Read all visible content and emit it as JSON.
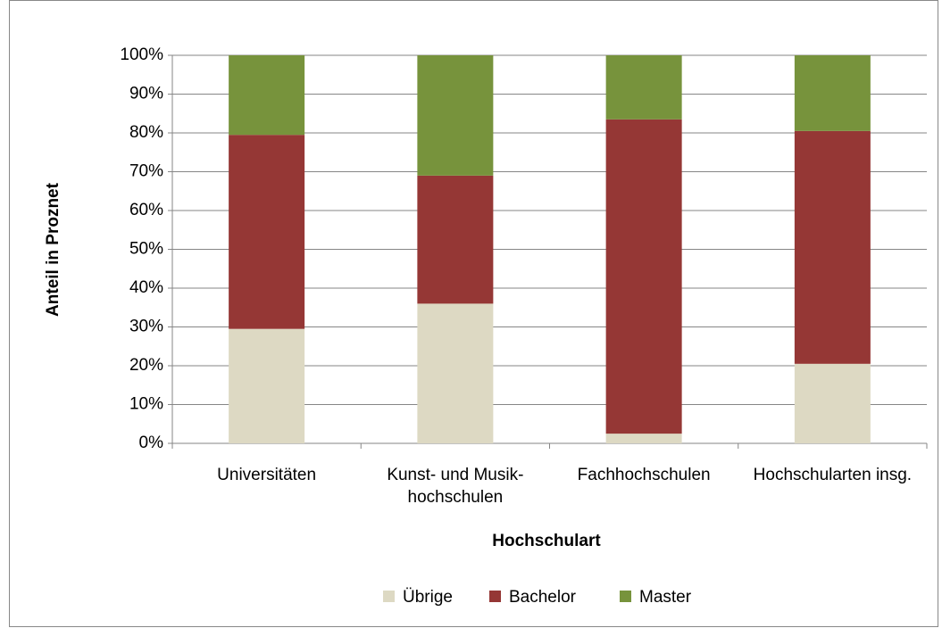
{
  "chart_data": {
    "type": "stacked_bar",
    "categories": [
      "Universitäten",
      "Kunst- und Musik-hochschulen",
      "Fachhochschulen",
      "Hochschularten insg."
    ],
    "series": [
      {
        "name": "Übrige",
        "color": "#ddd9c3",
        "values": [
          29.5,
          36,
          2.5,
          20.5
        ]
      },
      {
        "name": "Bachelor",
        "color": "#953735",
        "values": [
          50,
          33,
          81,
          60
        ]
      },
      {
        "name": "Master",
        "color": "#77933c",
        "values": [
          20.5,
          31,
          16.5,
          19.5
        ]
      }
    ],
    "xlabel": "Hochschulart",
    "ylabel": "Anteil in Proznet",
    "ylim": [
      0,
      100
    ],
    "yticks": [
      {
        "value": 0,
        "label": "0%"
      },
      {
        "value": 10,
        "label": "10%"
      },
      {
        "value": 20,
        "label": "20%"
      },
      {
        "value": 30,
        "label": "30%"
      },
      {
        "value": 40,
        "label": "40%"
      },
      {
        "value": 50,
        "label": "50%"
      },
      {
        "value": 60,
        "label": "60%"
      },
      {
        "value": 70,
        "label": "70%"
      },
      {
        "value": 80,
        "label": "80%"
      },
      {
        "value": 90,
        "label": "90%"
      },
      {
        "value": 100,
        "label": "100%"
      }
    ],
    "grid": true,
    "legend": "bottom"
  }
}
